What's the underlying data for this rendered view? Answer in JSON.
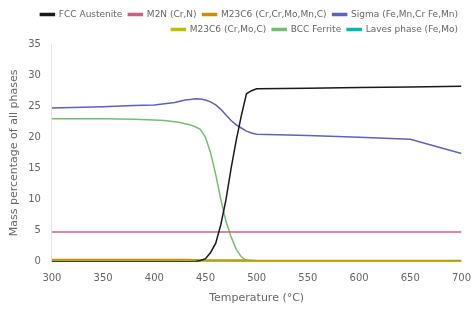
{
  "chart_data": {
    "type": "line",
    "xlabel": "Temperature (°C)",
    "ylabel": "Mass percentage of all phases",
    "xlim": [
      300,
      700
    ],
    "ylim": [
      0,
      35
    ],
    "xticks": [
      300,
      350,
      400,
      450,
      500,
      550,
      600,
      650,
      700
    ],
    "yticks": [
      0,
      5,
      10,
      15,
      20,
      25,
      30,
      35
    ],
    "grid": false,
    "legend": "upper right",
    "series": [
      {
        "name": "FCC Austenite",
        "color": "#1a1a1a",
        "x": [
          300,
          350,
          400,
          420,
          430,
          435,
          440,
          445,
          450,
          455,
          460,
          465,
          470,
          475,
          480,
          485,
          490,
          495,
          500,
          550,
          600,
          650,
          700
        ],
        "values": [
          0.0,
          0.0,
          0.0,
          0.0,
          0.0,
          0.0,
          0.0,
          0.2,
          0.5,
          1.5,
          3.0,
          6.0,
          10.0,
          15.0,
          19.5,
          23.5,
          27.0,
          27.5,
          27.8,
          27.9,
          28.0,
          28.1,
          28.2
        ]
      },
      {
        "name": "M2N (Cr,N)",
        "color": "#d06080",
        "x": [
          300,
          700
        ],
        "values": [
          4.8,
          4.8
        ]
      },
      {
        "name": "M23C6 (Cr,Cr,Mo,Mn,C)",
        "color": "#d09000",
        "x": [
          300,
          350,
          400,
          430,
          450,
          490,
          500,
          550,
          600,
          650,
          700
        ],
        "values": [
          0.35,
          0.35,
          0.35,
          0.35,
          0.3,
          0.3,
          0.2,
          0.2,
          0.2,
          0.2,
          0.2
        ]
      },
      {
        "name": "Sigma (Fe,Mn,Cr Fe,Mn)",
        "color": "#6060c0",
        "x": [
          300,
          350,
          380,
          400,
          410,
          420,
          425,
          430,
          435,
          440,
          445,
          450,
          455,
          460,
          465,
          470,
          475,
          480,
          485,
          490,
          495,
          500,
          550,
          600,
          650,
          700
        ],
        "values": [
          24.7,
          24.9,
          25.1,
          25.2,
          25.4,
          25.6,
          25.8,
          26.0,
          26.1,
          26.2,
          26.15,
          26.0,
          25.7,
          25.2,
          24.5,
          23.6,
          22.7,
          22.0,
          21.5,
          21.0,
          20.7,
          20.5,
          20.3,
          20.0,
          19.7,
          17.4
        ]
      },
      {
        "name": "M23C6 (Cr,Mo,C)",
        "color": "#c0c000",
        "x": [
          300,
          350,
          400,
          430,
          450,
          490,
          500,
          550,
          600,
          650,
          700
        ],
        "values": [
          0.12,
          0.12,
          0.12,
          0.12,
          0.12,
          0.12,
          0.08,
          0.08,
          0.08,
          0.08,
          0.08
        ]
      },
      {
        "name": "BCC Ferrite",
        "color": "#70c070",
        "x": [
          300,
          350,
          380,
          400,
          410,
          420,
          425,
          430,
          435,
          440,
          445,
          450,
          455,
          460,
          465,
          470,
          475,
          480,
          485,
          490,
          495,
          500
        ],
        "values": [
          23.0,
          23.0,
          22.9,
          22.8,
          22.7,
          22.5,
          22.4,
          22.2,
          22.0,
          21.7,
          21.3,
          20.0,
          17.5,
          14.0,
          10.0,
          6.5,
          4.0,
          2.0,
          0.8,
          0.2,
          0.05,
          0.0
        ]
      },
      {
        "name": "Laves phase (Fe,Mo)",
        "color": "#00b8b8",
        "x": [
          300,
          350,
          400,
          430,
          440,
          450,
          490,
          500,
          550,
          600,
          650,
          700
        ],
        "values": [
          0.18,
          0.18,
          0.18,
          0.18,
          0.15,
          0.12,
          0.08,
          0.06,
          0.05,
          0.05,
          0.04,
          0.04
        ]
      }
    ]
  }
}
